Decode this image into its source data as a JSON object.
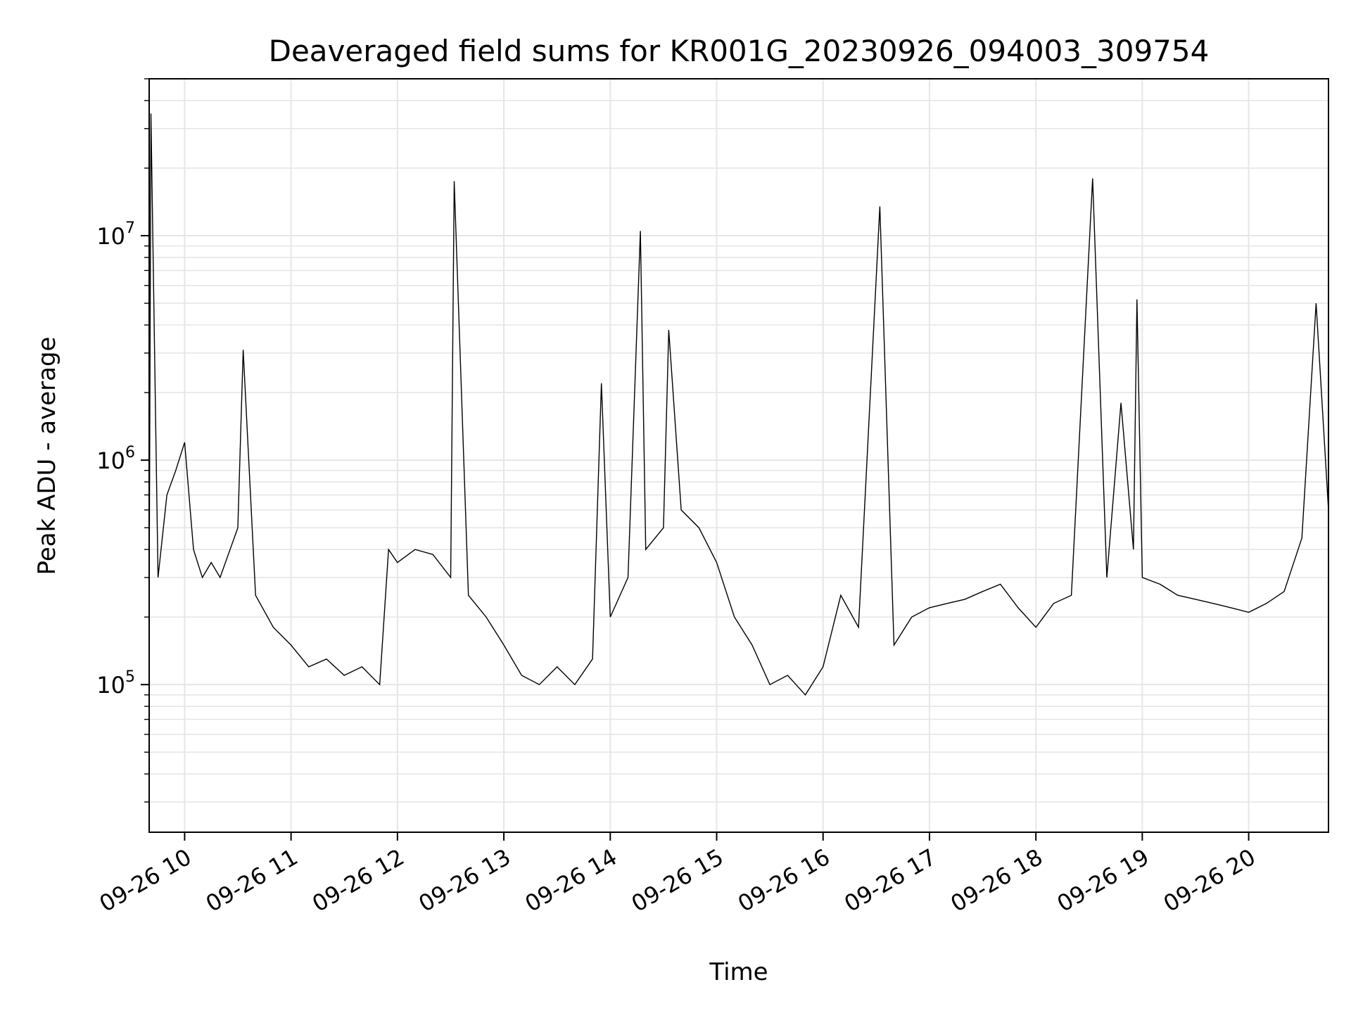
{
  "chart_data": {
    "type": "line",
    "title": "Deaveraged field sums for KR001G_20230926_094003_309754",
    "xlabel": "Time",
    "ylabel": "Peak ADU - average",
    "y_scale": "log",
    "ylim": [
      22000,
      50000000
    ],
    "xlim": [
      "2023-09-26 09:40",
      "2023-09-26 20:45"
    ],
    "grid": true,
    "x_ticks": [
      {
        "value": "2023-09-26 10:00",
        "label": "09-26 10"
      },
      {
        "value": "2023-09-26 11:00",
        "label": "09-26 11"
      },
      {
        "value": "2023-09-26 12:00",
        "label": "09-26 12"
      },
      {
        "value": "2023-09-26 13:00",
        "label": "09-26 13"
      },
      {
        "value": "2023-09-26 14:00",
        "label": "09-26 14"
      },
      {
        "value": "2023-09-26 15:00",
        "label": "09-26 15"
      },
      {
        "value": "2023-09-26 16:00",
        "label": "09-26 16"
      },
      {
        "value": "2023-09-26 17:00",
        "label": "09-26 17"
      },
      {
        "value": "2023-09-26 18:00",
        "label": "09-26 18"
      },
      {
        "value": "2023-09-26 19:00",
        "label": "09-26 19"
      },
      {
        "value": "2023-09-26 20:00",
        "label": "09-26 20"
      }
    ],
    "y_ticks": [
      {
        "value": 100000,
        "base": "10",
        "exp": "5"
      },
      {
        "value": 1000000,
        "base": "10",
        "exp": "6"
      },
      {
        "value": 10000000,
        "base": "10",
        "exp": "7"
      }
    ],
    "line_color": "#000000",
    "series": [
      {
        "x": [
          "2023-09-26 09:40",
          "2023-09-26 09:41",
          "2023-09-26 09:45",
          "2023-09-26 09:50",
          "2023-09-26 09:55",
          "2023-09-26 10:00",
          "2023-09-26 10:05",
          "2023-09-26 10:10",
          "2023-09-26 10:15",
          "2023-09-26 10:20",
          "2023-09-26 10:30",
          "2023-09-26 10:33",
          "2023-09-26 10:40",
          "2023-09-26 10:50",
          "2023-09-26 11:00",
          "2023-09-26 11:10",
          "2023-09-26 11:20",
          "2023-09-26 11:30",
          "2023-09-26 11:40",
          "2023-09-26 11:50",
          "2023-09-26 11:55",
          "2023-09-26 12:00",
          "2023-09-26 12:10",
          "2023-09-26 12:20",
          "2023-09-26 12:30",
          "2023-09-26 12:32",
          "2023-09-26 12:40",
          "2023-09-26 12:50",
          "2023-09-26 13:00",
          "2023-09-26 13:10",
          "2023-09-26 13:20",
          "2023-09-26 13:30",
          "2023-09-26 13:40",
          "2023-09-26 13:50",
          "2023-09-26 13:55",
          "2023-09-26 14:00",
          "2023-09-26 14:10",
          "2023-09-26 14:17",
          "2023-09-26 14:20",
          "2023-09-26 14:30",
          "2023-09-26 14:33",
          "2023-09-26 14:40",
          "2023-09-26 14:50",
          "2023-09-26 15:00",
          "2023-09-26 15:10",
          "2023-09-26 15:20",
          "2023-09-26 15:30",
          "2023-09-26 15:40",
          "2023-09-26 15:50",
          "2023-09-26 16:00",
          "2023-09-26 16:10",
          "2023-09-26 16:20",
          "2023-09-26 16:32",
          "2023-09-26 16:40",
          "2023-09-26 16:50",
          "2023-09-26 17:00",
          "2023-09-26 17:10",
          "2023-09-26 17:20",
          "2023-09-26 17:30",
          "2023-09-26 17:40",
          "2023-09-26 17:50",
          "2023-09-26 18:00",
          "2023-09-26 18:10",
          "2023-09-26 18:20",
          "2023-09-26 18:32",
          "2023-09-26 18:40",
          "2023-09-26 18:48",
          "2023-09-26 18:55",
          "2023-09-26 18:57",
          "2023-09-26 19:00",
          "2023-09-26 19:10",
          "2023-09-26 19:20",
          "2023-09-26 19:30",
          "2023-09-26 19:40",
          "2023-09-26 19:50",
          "2023-09-26 20:00",
          "2023-09-26 20:10",
          "2023-09-26 20:20",
          "2023-09-26 20:30",
          "2023-09-26 20:38",
          "2023-09-26 20:45"
        ],
        "y": [
          250000,
          35000000,
          300000,
          700000,
          900000,
          1200000,
          400000,
          300000,
          350000,
          300000,
          500000,
          3100000,
          250000,
          180000,
          150000,
          120000,
          130000,
          110000,
          120000,
          100000,
          400000,
          350000,
          400000,
          380000,
          300000,
          17500000,
          250000,
          200000,
          150000,
          110000,
          100000,
          120000,
          100000,
          130000,
          2200000,
          200000,
          300000,
          10500000,
          400000,
          500000,
          3800000,
          600000,
          500000,
          350000,
          200000,
          150000,
          100000,
          110000,
          90000,
          120000,
          250000,
          180000,
          13500000,
          150000,
          200000,
          220000,
          230000,
          240000,
          260000,
          280000,
          220000,
          180000,
          230000,
          250000,
          18000000,
          300000,
          1800000,
          400000,
          5200000,
          300000,
          280000,
          250000,
          240000,
          230000,
          220000,
          210000,
          230000,
          260000,
          450000,
          5000000,
          600000
        ]
      }
    ]
  }
}
